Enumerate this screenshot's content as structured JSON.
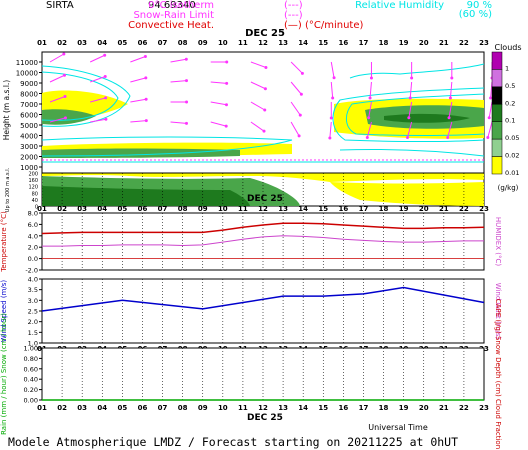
{
  "header": {
    "site": "SIRTA",
    "coord": "94.69340",
    "legend_left": [
      {
        "label": "0°C isotherm",
        "sample": "(---)",
        "color": "#ff33ff"
      },
      {
        "label": "Snow-Rain Limit",
        "sample": "(---)",
        "color": "#ff33ff"
      },
      {
        "label": "Convective Heat.",
        "sample": "(—) (°C/minute)",
        "color": "#e00000"
      }
    ],
    "legend_right": [
      {
        "label": "Relative Humidity",
        "values": "90 %",
        "color": "#00e5e5"
      },
      {
        "label": "",
        "values": "(60 %)",
        "color": "#00e5e5"
      }
    ]
  },
  "hours": [
    "01",
    "02",
    "03",
    "04",
    "05",
    "06",
    "07",
    "08",
    "09",
    "10",
    "11",
    "12",
    "13",
    "14",
    "15",
    "16",
    "17",
    "18",
    "19",
    "20",
    "21",
    "22",
    "23"
  ],
  "date_label": "DEC 25",
  "panels": {
    "clouds": {
      "ylabel": "Height (m a.s.l.)",
      "yticks": [
        "11000",
        "10000",
        "9000",
        "8000",
        "7000",
        "6000",
        "5000",
        "4000",
        "3000",
        "2000",
        "1000"
      ],
      "ylabel_low": "Up to 200 m a.s.l.",
      "yticks_low": [
        "200",
        "180",
        "160",
        "140",
        "120",
        "100",
        "80",
        "60",
        "40",
        "20",
        "0"
      ],
      "colorbar_title": "Clouds",
      "colorbar_unit": "(g/kg)",
      "colorbar_levels": [
        "1",
        "0.5",
        "0.2",
        "0.1",
        "0.05",
        "0.02",
        "0.01"
      ]
    },
    "temperature": {
      "ylabel_left": "Temperature (°C)",
      "ylabel_right": "HUMIDEX (°C)",
      "yticks": [
        "8.0",
        "6.0",
        "4.0",
        "2.0",
        "0.0",
        "-2.0"
      ]
    },
    "wind": {
      "ylabel_left": "Wind Speed (m/s)",
      "ylabel_right": "Wind Gust (m/s)",
      "yticks": [
        "4.0",
        "3.5",
        "3.0",
        "2.5",
        "2.0",
        "1.5",
        "1.0"
      ]
    },
    "precip": {
      "ylabel_left": "Rain (mm / hour) Snow (cm / hour)",
      "ylabel_right": "CAPE (J/g) Snow Depth (cm) Cloud Fraction",
      "yticks": [
        "1.00",
        "0.80",
        "0.60",
        "0.40",
        "0.20",
        "0.00"
      ]
    }
  },
  "xlabel": "Universal Time",
  "footer": "Modele Atmospherique LMDZ / Forecast starting on 20211225 at 0hUT",
  "chart_data": [
    {
      "type": "line",
      "title": "",
      "xlabel": "",
      "ylabel": "Temperature (°C)",
      "x": [
        1,
        2,
        3,
        4,
        5,
        6,
        7,
        8,
        9,
        10,
        11,
        12,
        13,
        14,
        15,
        16,
        17,
        18,
        19,
        20,
        21,
        22,
        23
      ],
      "ylim": [
        -2,
        8
      ],
      "series": [
        {
          "color": "#cc0000",
          "values": [
            4.4,
            4.5,
            4.6,
            4.6,
            4.6,
            4.6,
            4.6,
            4.6,
            4.6,
            5.0,
            5.5,
            5.9,
            6.2,
            6.2,
            6.1,
            5.9,
            5.7,
            5.5,
            5.3,
            5.3,
            5.4,
            5.4,
            5.5
          ]
        },
        {
          "color": "#cc44cc",
          "values": [
            2.2,
            2.2,
            2.3,
            2.3,
            2.4,
            2.4,
            2.4,
            2.3,
            2.4,
            2.9,
            3.4,
            3.8,
            4.0,
            3.9,
            3.7,
            3.4,
            3.2,
            3.0,
            2.9,
            2.9,
            3.0,
            3.1,
            3.1
          ]
        }
      ]
    },
    {
      "type": "line",
      "title": "",
      "xlabel": "",
      "ylabel": "Wind Speed (m/s)",
      "x": [
        1,
        5,
        9,
        13,
        15,
        17,
        19,
        23
      ],
      "ylim": [
        1.0,
        4.0
      ],
      "series": [
        {
          "color": "#0000cc",
          "values": [
            2.5,
            3.0,
            2.6,
            3.2,
            3.2,
            3.3,
            3.6,
            2.9
          ]
        }
      ]
    },
    {
      "type": "line",
      "title": "",
      "xlabel": "Universal Time",
      "ylabel": "Rain (mm / hour)",
      "x": [
        1,
        23
      ],
      "ylim": [
        0.0,
        1.0
      ],
      "series": [
        {
          "color": "#00aa00",
          "values": [
            0.0,
            0.0
          ]
        }
      ]
    }
  ],
  "colors": {
    "axis": "#000000",
    "cloud_yellow": "#ffff00",
    "cloud_green_dark": "#1e7a1e",
    "cloud_green": "#4aa64a",
    "cloud_green_light": "#90d090",
    "wind_arrow": "#ff33ff",
    "rh_contour": "#00e5e5",
    "colorbar": [
      "#b000b0",
      "#d070e0",
      "#000000",
      "#1e7a1e",
      "#4aa64a",
      "#90d090",
      "#ffff00"
    ]
  }
}
